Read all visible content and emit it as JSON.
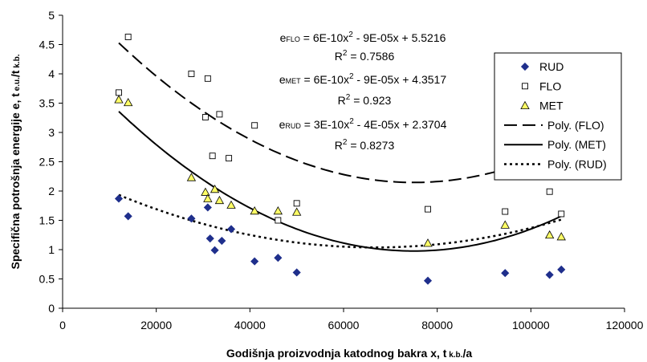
{
  "chart_data": {
    "type": "scatter",
    "xlabel": "Godišnja proizvodnja katodnog bakra x, t",
    "xlabel_sub": "k.b.",
    "xlabel_tail": "/a",
    "ylabel": "Specifična potrošnja energije e, t",
    "ylabel_sub1": "e.u.",
    "ylabel_mid": "/t",
    "ylabel_sub2": "k.b.",
    "xlim": [
      0,
      120000
    ],
    "ylim": [
      0,
      5
    ],
    "xticks": [
      "0",
      "20000",
      "40000",
      "60000",
      "80000",
      "100000",
      "120000"
    ],
    "yticks": [
      "0",
      "0.5",
      "1",
      "1.5",
      "2",
      "2.5",
      "3",
      "3.5",
      "4",
      "4.5",
      "5"
    ],
    "grid": false,
    "legend_position": "right",
    "series": [
      {
        "name": "RUD",
        "marker": "diamond",
        "color": "#1f2f8c",
        "x": [
          12000,
          14000,
          27500,
          31000,
          31500,
          32500,
          34000,
          36000,
          41000,
          46000,
          50000,
          78000,
          94500,
          104000,
          106500
        ],
        "y": [
          1.87,
          1.57,
          1.53,
          1.72,
          1.19,
          0.99,
          1.15,
          1.35,
          0.8,
          0.86,
          0.61,
          0.47,
          0.6,
          0.57,
          0.66
        ]
      },
      {
        "name": "FLO",
        "marker": "square",
        "color": "#ffffff",
        "x": [
          12000,
          14000,
          27500,
          30500,
          31000,
          32000,
          33500,
          35500,
          41000,
          46000,
          50000,
          78000,
          94500,
          104000,
          106500
        ],
        "y": [
          3.68,
          4.63,
          4.0,
          3.26,
          3.92,
          2.6,
          3.31,
          2.56,
          3.12,
          1.5,
          1.79,
          1.69,
          1.65,
          1.99,
          1.61
        ]
      },
      {
        "name": "MET",
        "marker": "triangle",
        "color": "#ffff66",
        "x": [
          12000,
          14000,
          27500,
          30500,
          31000,
          32500,
          33500,
          36000,
          41000,
          46000,
          50000,
          78000,
          94500,
          104000,
          106500
        ],
        "y": [
          3.56,
          3.51,
          2.23,
          1.98,
          1.87,
          2.03,
          1.84,
          1.76,
          1.66,
          1.66,
          1.64,
          1.11,
          1.42,
          1.25,
          1.22
        ]
      }
    ],
    "trendlines": [
      {
        "name": "Poly. (FLO)",
        "style": "dashed",
        "coeffs": [
          6e-10,
          -9e-05,
          5.5216
        ],
        "x_range": [
          12000,
          106500
        ]
      },
      {
        "name": "Poly. (MET)",
        "style": "solid",
        "coeffs": [
          6e-10,
          -9e-05,
          4.3517
        ],
        "x_range": [
          12000,
          106500
        ]
      },
      {
        "name": "Poly. (RUD)",
        "style": "dotted",
        "coeffs": [
          3e-10,
          -4e-05,
          2.3704
        ],
        "x_range": [
          12000,
          106500
        ]
      }
    ],
    "equations": [
      {
        "label": "FLO",
        "eq": " = 6E-10x",
        "rest": " - 9E-05x + 5.5216",
        "r2_value": " = 0.7586"
      },
      {
        "label": "MET",
        "eq": " = 6E-10x",
        "rest": " - 9E-05x + 4.3517",
        "r2_value": " = 0.923"
      },
      {
        "label": "RUD",
        "eq": " = 3E-10x",
        "rest": " - 4E-05x + 2.3704",
        "r2_value": " = 0.8273"
      }
    ],
    "eq_prefix": "e",
    "r2_prefix": "R",
    "superscript": "2"
  }
}
